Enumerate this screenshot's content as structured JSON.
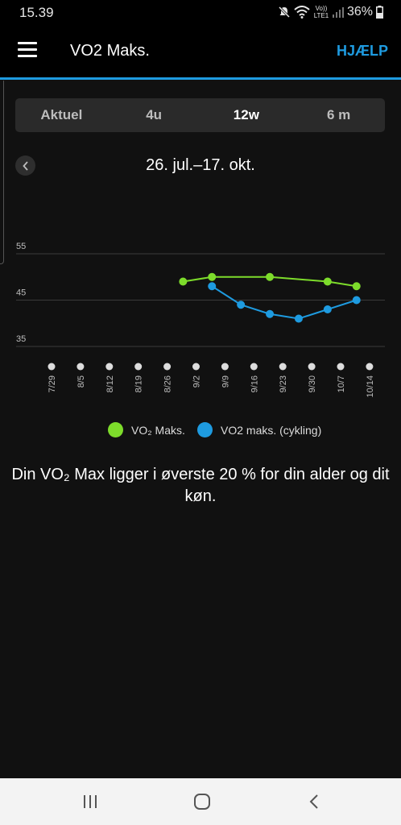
{
  "status_bar": {
    "time": "15.39",
    "network_label": "Vo)) LTE1",
    "battery": "36%"
  },
  "app_bar": {
    "title": "VO2 Maks.",
    "help_label": "HJÆLP"
  },
  "tabs": [
    {
      "label": "Aktuel",
      "active": false
    },
    {
      "label": "4u",
      "active": false
    },
    {
      "label": "12w",
      "active": true
    },
    {
      "label": "6 m",
      "active": false
    }
  ],
  "date_range": "26. jul.–17. okt.",
  "chart_data": {
    "type": "line",
    "x": [
      "7/29",
      "8/5",
      "8/12",
      "8/19",
      "8/26",
      "9/2",
      "9/9",
      "9/16",
      "9/23",
      "9/30",
      "10/7",
      "10/14"
    ],
    "y_ticks": [
      35,
      45,
      55
    ],
    "ylim": [
      35,
      55
    ],
    "grid": true,
    "legend_position": "bottom",
    "series": [
      {
        "name": "VO₂ Maks.",
        "color": "#7ddc2b",
        "points": [
          {
            "x": 4.55,
            "y": 49
          },
          {
            "x": 5.55,
            "y": 50
          },
          {
            "x": 7.55,
            "y": 50
          },
          {
            "x": 9.55,
            "y": 49
          },
          {
            "x": 10.55,
            "y": 48
          }
        ]
      },
      {
        "name": "VO2 maks. (cykling)",
        "color": "#1e9be0",
        "points": [
          {
            "x": 5.55,
            "y": 48
          },
          {
            "x": 6.55,
            "y": 44
          },
          {
            "x": 7.55,
            "y": 42
          },
          {
            "x": 8.55,
            "y": 41
          },
          {
            "x": 9.55,
            "y": 43
          },
          {
            "x": 10.55,
            "y": 45
          }
        ]
      }
    ]
  },
  "legend": [
    {
      "label": "VO₂ Maks.",
      "color": "#7ddc2b"
    },
    {
      "label": "VO2 maks. (cykling)",
      "color": "#1e9be0"
    }
  ],
  "message": "Din VO₂ Max ligger i øverste 20 % for din alder og dit køn."
}
